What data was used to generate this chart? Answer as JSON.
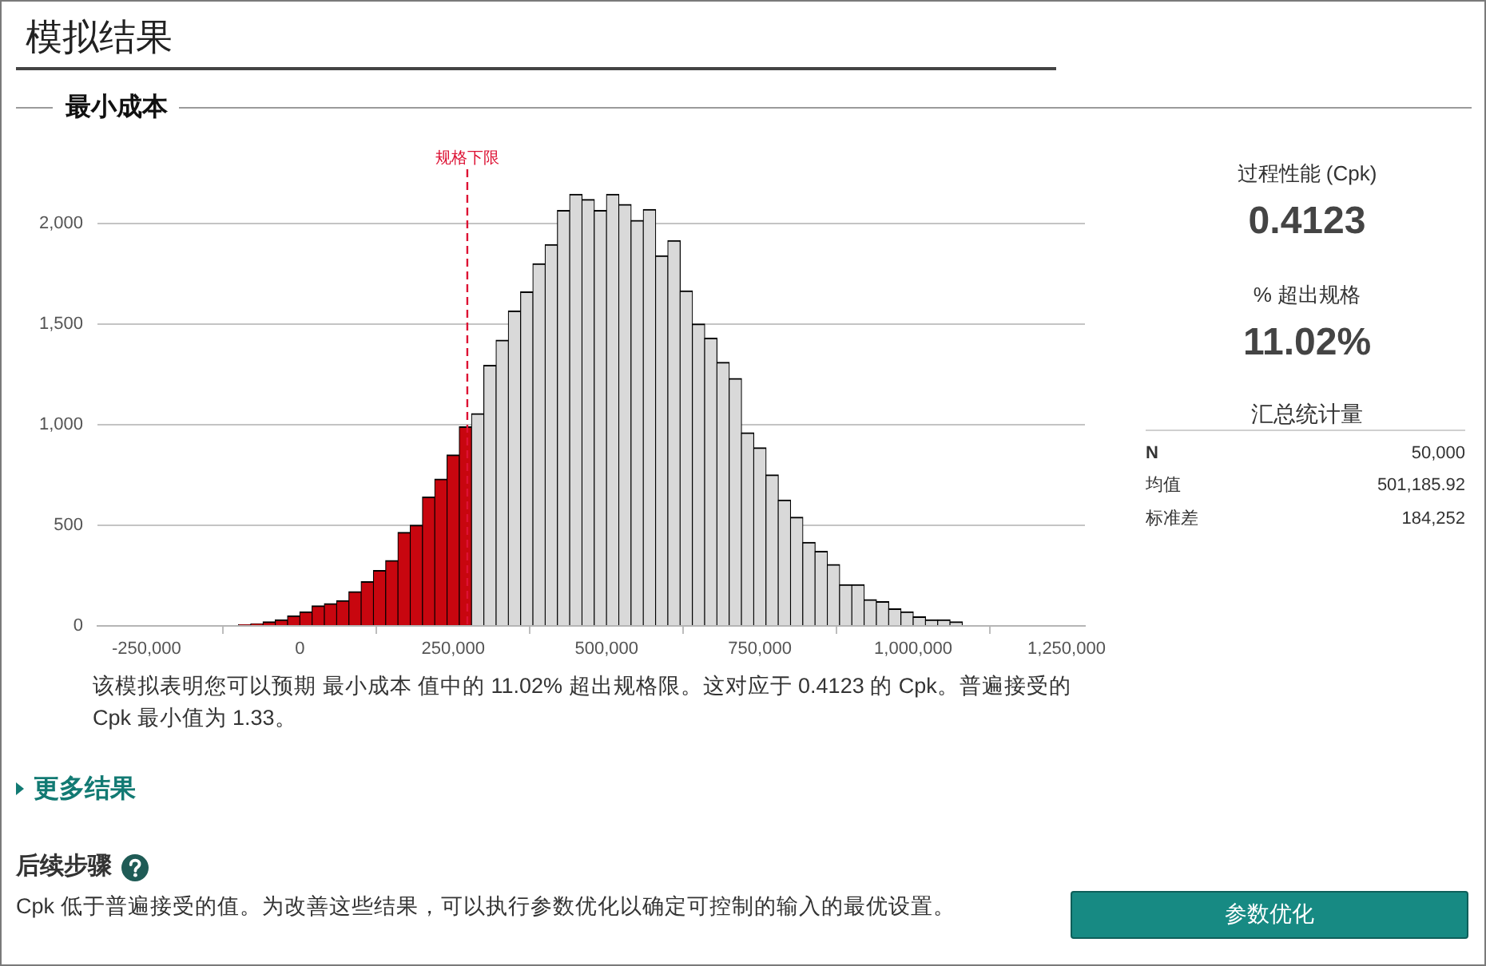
{
  "chart_data": {
    "type": "histogram",
    "title": "模拟结果",
    "subtitle": "最小成本",
    "bins": [
      -300000,
      -280000,
      -260000,
      -240000,
      -220000,
      -200000,
      -180000,
      -160000,
      -140000,
      -120000,
      -100000,
      -80000,
      -60000,
      -40000,
      -20000,
      0,
      20000,
      40000,
      60000,
      80000,
      100000,
      120000,
      140000,
      160000,
      180000,
      200000,
      220000,
      240000,
      260000,
      280000,
      300000,
      320000,
      340000,
      360000,
      380000,
      400000,
      420000,
      440000,
      460000,
      480000,
      500000,
      520000,
      540000,
      560000,
      580000,
      600000,
      620000,
      640000,
      660000,
      680000,
      700000,
      720000,
      740000,
      760000,
      780000,
      800000,
      820000,
      840000,
      860000,
      880000,
      900000,
      920000,
      940000,
      960000,
      980000,
      1000000,
      1020000,
      1040000,
      1060000,
      1080000,
      1100000,
      1120000,
      1140000,
      1160000,
      1180000,
      1200000,
      1220000,
      1240000
    ],
    "values": [
      0,
      0,
      0,
      0,
      0,
      0,
      0,
      0,
      0,
      0,
      5,
      10,
      20,
      30,
      50,
      70,
      100,
      110,
      125,
      170,
      220,
      275,
      325,
      465,
      500,
      640,
      730,
      850,
      990,
      1055,
      1295,
      1420,
      1565,
      1660,
      1800,
      1895,
      2065,
      2145,
      2120,
      2065,
      2145,
      2095,
      2015,
      2070,
      1840,
      1915,
      1665,
      1500,
      1430,
      1310,
      1230,
      960,
      885,
      750,
      625,
      540,
      415,
      370,
      305,
      205,
      205,
      130,
      120,
      85,
      70,
      45,
      30,
      30,
      20,
      0,
      0,
      0,
      0,
      0,
      0,
      0,
      0
    ],
    "colors": [
      "#c8060f",
      "#c8060f",
      "#c8060f",
      "#c8060f",
      "#c8060f",
      "#c8060f",
      "#c8060f",
      "#c8060f",
      "#c8060f",
      "#c8060f",
      "#c8060f",
      "#c8060f",
      "#c8060f",
      "#c8060f",
      "#c8060f",
      "#c8060f",
      "#c8060f",
      "#c8060f",
      "#c8060f",
      "#c8060f",
      "#c8060f",
      "#c8060f",
      "#c8060f",
      "#c8060f",
      "#c8060f",
      "#c8060f",
      "#c8060f",
      "#c8060f",
      "#c8060f",
      "#d9d9d9",
      "#d9d9d9",
      "#d9d9d9",
      "#d9d9d9",
      "#d9d9d9",
      "#d9d9d9",
      "#d9d9d9",
      "#d9d9d9",
      "#d9d9d9",
      "#d9d9d9",
      "#d9d9d9",
      "#d9d9d9",
      "#d9d9d9",
      "#d9d9d9",
      "#d9d9d9",
      "#d9d9d9",
      "#d9d9d9",
      "#d9d9d9",
      "#d9d9d9",
      "#d9d9d9",
      "#d9d9d9",
      "#d9d9d9",
      "#d9d9d9",
      "#d9d9d9",
      "#d9d9d9",
      "#d9d9d9",
      "#d9d9d9",
      "#d9d9d9",
      "#d9d9d9",
      "#d9d9d9",
      "#d9d9d9",
      "#d9d9d9",
      "#d9d9d9",
      "#d9d9d9",
      "#d9d9d9",
      "#d9d9d9",
      "#d9d9d9",
      "#d9d9d9",
      "#d9d9d9",
      "#d9d9d9",
      "#d9d9d9",
      "#d9d9d9",
      "#d9d9d9",
      "#d9d9d9",
      "#d9d9d9",
      "#d9d9d9",
      "#d9d9d9",
      "#d9d9d9"
    ],
    "xlim": [
      -330000,
      1280000
    ],
    "xticks": [
      {
        "value": -250000,
        "label": "-250,000"
      },
      0,
      {
        "value": 250000,
        "label": "250,000"
      },
      {
        "value": 500000,
        "label": "500,000"
      },
      {
        "value": 750000,
        "label": "750,000"
      },
      {
        "value": 1000000,
        "label": "1,000,000"
      },
      {
        "value": 1250000,
        "label": "1,250,000"
      }
    ],
    "ylim": [
      0,
      2270
    ],
    "yticks": [
      0,
      500,
      {
        "value": 1000,
        "label": "1,000"
      },
      {
        "value": 1500,
        "label": "1,500"
      },
      {
        "value": 2000,
        "label": "2,000"
      }
    ],
    "grid": "y",
    "ref_lines": [
      {
        "axis": "x",
        "value": 273000,
        "label": "规格下限",
        "color": "#dd1133",
        "line_style": "dashed"
      }
    ],
    "annotations": [
      "过程性能 (Cpk)",
      "0.4123",
      "% 超出规格",
      "11.02%",
      "汇总统计量",
      "N",
      "50,000",
      "均值",
      "501,185.92",
      "标准差",
      "184,252",
      "该模拟表明您可以预期 最小成本 值中的 11.02% 超出规格限。这对应于 0.4123 的 Cpk。普遍接受的 Cpk 最小值为 1.33。",
      "更多结果",
      "后续步骤",
      "Cpk 低于普遍接受的值。为改善这些结果，可以执行参数优化以确定可控制的输入的最优设置。",
      "参数优化"
    ]
  }
}
